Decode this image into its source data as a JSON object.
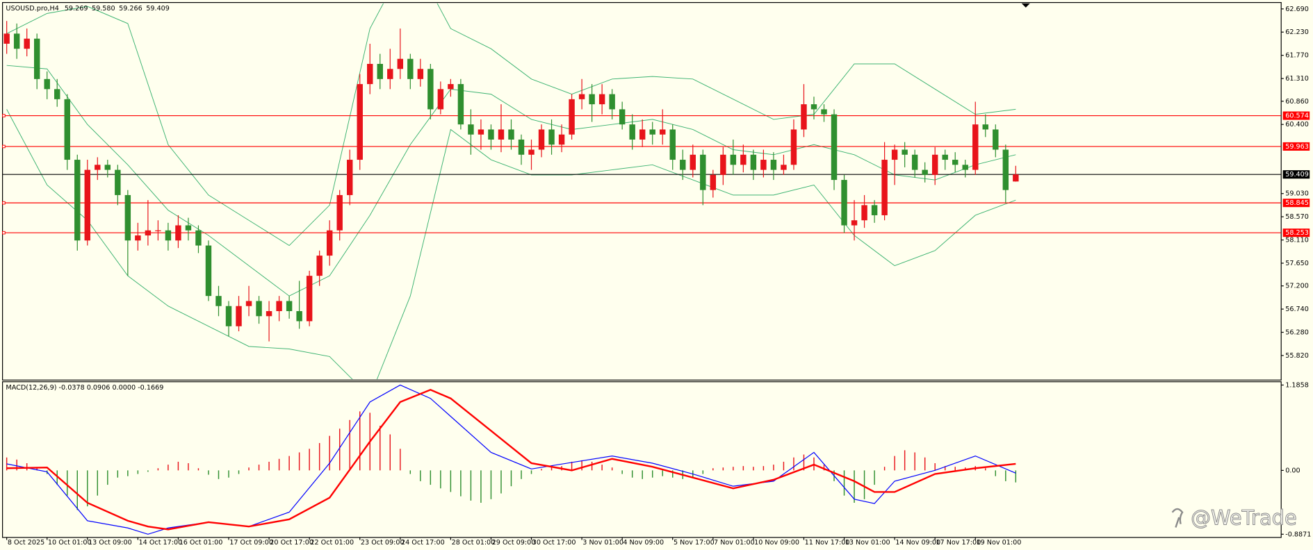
{
  "chart_data": [
    {
      "type": "candlestick",
      "title": "USOUSD.pro,H4",
      "header_values": [
        "59.269",
        "59.580",
        "59.266",
        "59.409"
      ],
      "categories": [
        "8 Oct 2025",
        null,
        null,
        null,
        "10 Oct 01:00",
        null,
        null,
        null,
        "13 Oct 09:00",
        null,
        null,
        null,
        null,
        "14 Oct 17:00",
        null,
        null,
        null,
        "16 Oct 01:00",
        null,
        null,
        null,
        null,
        "17 Oct 09:00",
        null,
        null,
        null,
        "20 Oct 17:00",
        null,
        null,
        null,
        "22 Oct 01:00",
        null,
        null,
        null,
        null,
        "23 Oct 09:00",
        null,
        null,
        null,
        "24 Oct 17:00",
        null,
        null,
        null,
        null,
        "28 Oct 01:00",
        null,
        null,
        null,
        "29 Oct 09:00",
        null,
        null,
        null,
        "30 Oct 17:00",
        null,
        null,
        null,
        null,
        "3 Nov 01:00",
        null,
        null,
        null,
        "4 Nov 09:00",
        null,
        null,
        null,
        null,
        "5 Nov 17:00",
        null,
        null,
        null,
        "7 Nov 01:00",
        null,
        null,
        null,
        "10 Nov 09:00",
        null,
        null,
        null,
        null,
        "11 Nov 17:00",
        null,
        null,
        null,
        "13 Nov 01:00",
        null,
        null,
        null,
        null,
        "14 Nov 09:00",
        null,
        null,
        null,
        "17 Nov 17:00",
        null,
        null,
        null,
        "19 Nov 01:00",
        null,
        null,
        null,
        null
      ],
      "open": [
        62.0,
        62.2,
        61.9,
        62.1,
        61.3,
        61.1,
        60.9,
        59.7,
        58.1,
        59.5,
        59.6,
        59.5,
        59.0,
        58.1,
        58.2,
        58.3,
        58.3,
        58.1,
        58.4,
        58.3,
        58.0,
        57.0,
        56.8,
        56.4,
        56.8,
        56.9,
        56.6,
        56.7,
        56.9,
        56.7,
        56.5,
        57.4,
        57.8,
        58.3,
        59.0,
        59.7,
        61.2,
        61.6,
        61.3,
        61.5,
        61.7,
        61.3,
        61.5,
        60.7,
        61.1,
        61.2,
        60.4,
        60.2,
        60.3,
        60.1,
        60.3,
        60.1,
        59.8,
        59.9,
        60.3,
        60.0,
        60.2,
        60.9,
        61.0,
        60.8,
        61.0,
        60.7,
        60.4,
        60.1,
        60.3,
        60.2,
        60.3,
        59.7,
        59.5,
        59.8,
        59.1,
        59.4,
        59.8,
        59.6,
        59.8,
        59.5,
        59.7,
        59.5,
        59.6,
        60.3,
        60.8,
        60.7,
        60.6,
        59.3,
        58.4,
        58.5,
        58.8,
        58.6,
        59.7,
        59.9,
        59.8,
        59.5,
        59.4,
        59.8,
        59.7,
        59.6,
        59.5,
        60.4,
        60.3,
        59.9,
        59.269
      ],
      "high": [
        62.45,
        62.4,
        62.3,
        62.2,
        61.45,
        61.3,
        61.0,
        59.8,
        59.7,
        59.75,
        59.7,
        59.6,
        59.1,
        58.45,
        58.9,
        58.5,
        58.45,
        58.6,
        58.55,
        58.4,
        58.1,
        57.2,
        56.9,
        57.0,
        57.2,
        57.0,
        56.9,
        57.0,
        57.0,
        57.3,
        57.5,
        57.9,
        58.5,
        59.1,
        59.9,
        61.4,
        62.0,
        61.8,
        61.9,
        62.3,
        61.8,
        61.7,
        61.6,
        61.25,
        61.3,
        61.3,
        60.7,
        60.5,
        60.4,
        60.8,
        60.5,
        60.2,
        60.1,
        60.4,
        60.5,
        60.4,
        61.0,
        61.3,
        61.2,
        61.2,
        61.1,
        60.85,
        60.6,
        60.5,
        60.45,
        60.7,
        60.4,
        59.9,
        60.0,
        59.9,
        59.5,
        59.95,
        60.1,
        60.0,
        59.9,
        59.9,
        59.85,
        59.8,
        60.5,
        61.2,
        60.95,
        60.8,
        60.7,
        59.4,
        58.9,
        59.0,
        58.9,
        60.05,
        60.0,
        60.05,
        59.9,
        59.65,
        59.95,
        59.9,
        59.85,
        59.7,
        60.85,
        60.6,
        60.4,
        60.0,
        59.58
      ],
      "low": [
        61.8,
        61.7,
        61.75,
        61.1,
        60.9,
        60.75,
        59.5,
        57.9,
        58.0,
        59.3,
        59.35,
        58.8,
        57.4,
        57.9,
        58.0,
        58.1,
        57.9,
        57.95,
        58.1,
        57.85,
        56.9,
        56.6,
        56.2,
        56.3,
        56.6,
        56.45,
        56.1,
        56.5,
        56.55,
        56.35,
        56.4,
        57.2,
        57.6,
        58.1,
        58.8,
        59.5,
        61.0,
        61.1,
        61.1,
        61.3,
        61.1,
        61.15,
        60.5,
        60.6,
        60.95,
        60.3,
        59.8,
        59.9,
        59.9,
        59.85,
        59.9,
        59.6,
        59.5,
        59.75,
        59.8,
        59.85,
        60.1,
        60.7,
        60.45,
        60.6,
        60.5,
        60.3,
        59.9,
        59.95,
        60.0,
        60.0,
        59.5,
        59.3,
        59.35,
        58.8,
        58.95,
        59.2,
        59.4,
        59.45,
        59.3,
        59.35,
        59.3,
        59.4,
        59.5,
        60.15,
        60.5,
        60.45,
        59.1,
        58.25,
        58.1,
        58.35,
        58.45,
        58.5,
        59.2,
        59.55,
        59.35,
        59.25,
        59.2,
        59.5,
        59.45,
        59.35,
        59.4,
        60.15,
        59.75,
        58.85,
        59.266
      ],
      "close": [
        62.2,
        61.9,
        62.1,
        61.3,
        61.1,
        60.9,
        59.7,
        58.1,
        59.5,
        59.6,
        59.5,
        59.0,
        58.1,
        58.2,
        58.3,
        58.3,
        58.1,
        58.4,
        58.3,
        58.0,
        57.0,
        56.8,
        56.4,
        56.8,
        56.9,
        56.6,
        56.7,
        56.9,
        56.7,
        56.5,
        57.4,
        57.8,
        58.3,
        59.0,
        59.7,
        61.2,
        61.6,
        61.3,
        61.5,
        61.7,
        61.3,
        61.5,
        60.7,
        61.1,
        61.2,
        60.4,
        60.2,
        60.3,
        60.1,
        60.3,
        60.1,
        59.8,
        59.9,
        60.3,
        60.0,
        60.2,
        60.9,
        61.0,
        60.8,
        61.0,
        60.7,
        60.4,
        60.1,
        60.3,
        60.2,
        60.3,
        59.7,
        59.5,
        59.8,
        59.1,
        59.4,
        59.8,
        59.6,
        59.8,
        59.5,
        59.7,
        59.5,
        59.6,
        60.3,
        60.8,
        60.7,
        60.6,
        59.3,
        58.4,
        58.5,
        58.8,
        58.6,
        59.7,
        59.9,
        59.8,
        59.5,
        59.4,
        59.8,
        59.7,
        59.6,
        59.5,
        60.4,
        60.3,
        59.9,
        59.1,
        59.409
      ],
      "up_color": "#e8141b",
      "down_color": "#2f8f2f",
      "ylim": [
        55.35,
        62.8
      ],
      "yticks": [
        {
          "value": 62.69,
          "label": "62.690"
        },
        {
          "value": 62.23,
          "label": "62.230"
        },
        {
          "value": 61.77,
          "label": "61.770"
        },
        {
          "value": 61.31,
          "label": "61.310"
        },
        {
          "value": 60.86,
          "label": "60.860"
        },
        {
          "value": 60.4,
          "label": "60.400"
        },
        {
          "value": 59.03,
          "label": "59.030"
        },
        {
          "value": 58.57,
          "label": "58.570"
        },
        {
          "value": 58.11,
          "label": "58.110"
        },
        {
          "value": 57.65,
          "label": "57.650"
        },
        {
          "value": 57.2,
          "label": "57.200"
        },
        {
          "value": 56.74,
          "label": "56.740"
        },
        {
          "value": 56.28,
          "label": "56.280"
        },
        {
          "value": 55.82,
          "label": "55.820"
        }
      ],
      "bands": {
        "color": "#3cb371",
        "x": [
          0,
          4,
          8,
          12,
          16,
          20,
          24,
          28,
          32,
          36,
          40,
          44,
          48,
          52,
          56,
          60,
          64,
          68,
          72,
          76,
          80,
          84,
          88,
          92,
          96,
          100
        ],
        "upper": [
          62.2,
          62.6,
          62.74,
          62.4,
          60.0,
          59.0,
          58.5,
          58.0,
          58.8,
          62.3,
          63.8,
          62.3,
          61.9,
          61.3,
          61.0,
          61.3,
          61.35,
          61.3,
          60.9,
          60.5,
          60.6,
          61.6,
          61.6,
          61.1,
          60.6,
          60.7
        ],
        "middle": [
          61.57,
          61.5,
          60.4,
          59.6,
          58.7,
          58.2,
          57.6,
          57.0,
          57.4,
          58.6,
          60.0,
          61.1,
          61.0,
          60.5,
          60.3,
          60.4,
          60.5,
          60.3,
          59.9,
          59.8,
          60.0,
          59.8,
          59.4,
          59.3,
          59.6,
          59.8
        ],
        "lower": [
          60.7,
          59.2,
          58.5,
          57.4,
          56.8,
          56.4,
          56.0,
          55.95,
          55.8,
          55.0,
          57.0,
          60.3,
          59.7,
          59.4,
          59.4,
          59.5,
          59.6,
          59.3,
          59.0,
          59.0,
          59.2,
          58.2,
          57.6,
          57.9,
          58.6,
          58.9
        ]
      },
      "levels": [
        {
          "value": 60.574,
          "color": "#ff0000"
        },
        {
          "value": 59.963,
          "color": "#ff0000"
        },
        {
          "value": 58.845,
          "color": "#ff0000"
        },
        {
          "value": 58.253,
          "color": "#ff0000"
        }
      ],
      "price_line": {
        "value": 59.409,
        "color": "#000000"
      }
    },
    {
      "type": "macd",
      "title": "MACD(12,26,9) -0.0378 0.0906 0.0000 -0.1669",
      "x": [
        0,
        4,
        8,
        12,
        14,
        16,
        20,
        24,
        28,
        32,
        36,
        39,
        42,
        44,
        48,
        52,
        56,
        60,
        64,
        68,
        72,
        76,
        80,
        84,
        86,
        88,
        92,
        96,
        100
      ],
      "macd": {
        "color": "#0000ff",
        "values": [
          0.09,
          -0.02,
          -0.7,
          -0.8,
          -0.8871,
          -0.8,
          -0.72,
          -0.78,
          -0.58,
          0.1,
          0.95,
          1.1858,
          1.0,
          0.75,
          0.25,
          0.02,
          0.11,
          0.2,
          0.1,
          -0.05,
          -0.22,
          -0.15,
          0.25,
          -0.4,
          -0.46,
          -0.15,
          0.0,
          0.2,
          -0.0378
        ]
      },
      "signal": {
        "color": "#ff0000",
        "values": [
          0.03,
          0.04,
          -0.45,
          -0.7,
          -0.78,
          -0.82,
          -0.72,
          -0.78,
          -0.68,
          -0.38,
          0.4,
          0.95,
          1.12,
          1.0,
          0.55,
          0.1,
          0.0,
          0.16,
          0.05,
          -0.1,
          -0.25,
          -0.13,
          0.08,
          -0.15,
          -0.3,
          -0.3,
          -0.05,
          0.03,
          0.0906
        ]
      },
      "histogram": {
        "up_color": "#e8141b",
        "down_color": "#2f8f2f",
        "values": [
          0.18,
          0.15,
          0.1,
          0.03,
          -0.05,
          -0.2,
          -0.35,
          -0.55,
          -0.5,
          -0.35,
          -0.2,
          -0.1,
          -0.08,
          -0.05,
          -0.02,
          0.03,
          0.08,
          0.12,
          0.1,
          0.03,
          -0.06,
          -0.12,
          -0.1,
          -0.05,
          0.04,
          0.08,
          0.12,
          0.16,
          0.2,
          0.25,
          0.3,
          0.38,
          0.48,
          0.58,
          0.7,
          0.82,
          0.8,
          0.62,
          0.5,
          0.3,
          -0.05,
          -0.15,
          -0.2,
          -0.25,
          -0.3,
          -0.36,
          -0.42,
          -0.45,
          -0.4,
          -0.32,
          -0.22,
          -0.12,
          -0.05,
          0.02,
          0.04,
          0.06,
          0.12,
          0.14,
          0.12,
          0.08,
          0.04,
          -0.05,
          -0.1,
          -0.12,
          -0.1,
          -0.08,
          -0.1,
          -0.12,
          -0.1,
          -0.05,
          0.03,
          0.04,
          0.05,
          0.06,
          0.05,
          0.06,
          0.08,
          0.12,
          0.18,
          0.22,
          0.18,
          0.08,
          -0.15,
          -0.35,
          -0.45,
          -0.4,
          -0.2,
          0.05,
          0.2,
          0.28,
          0.25,
          0.18,
          0.1,
          0.06,
          0.05,
          0.04,
          0.06,
          0.03,
          -0.08,
          -0.15,
          -0.1669
        ]
      },
      "ylim": [
        -0.92,
        1.22
      ],
      "yticks": [
        1.1858,
        {
          "value": 0,
          "label": "0.00"
        },
        -0.8871
      ]
    }
  ],
  "watermark": "@WeTrade"
}
